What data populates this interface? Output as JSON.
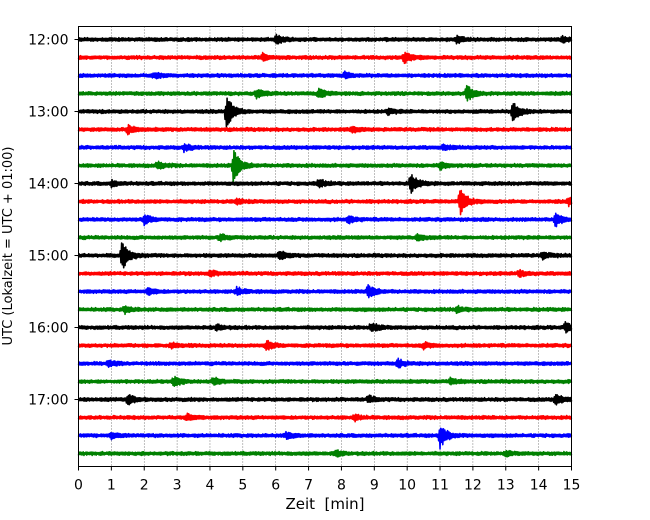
{
  "chart_data": {
    "type": "line",
    "title": "",
    "xlabel": "Zeit  [min]",
    "ylabel": "UTC (Lokalzeit = UTC + 01:00)",
    "xlim": [
      0,
      15
    ],
    "x_ticks": [
      "0",
      "1",
      "2",
      "3",
      "4",
      "5",
      "6",
      "7",
      "8",
      "9",
      "10",
      "11",
      "12",
      "13",
      "14",
      "15"
    ],
    "y_tick_labels": [
      "12:00",
      "13:00",
      "14:00",
      "15:00",
      "16:00",
      "17:00"
    ],
    "grid": "vertical dotted lines at each minute",
    "trace_interval_minutes": 15,
    "colors_cycle": [
      "#000000",
      "#ff0000",
      "#0000ff",
      "#008000"
    ],
    "traces": [
      {
        "start": "12:00",
        "color": "#000000",
        "events": [
          [
            6.0,
            0.6
          ],
          [
            11.5,
            0.5
          ],
          [
            14.7,
            0.4
          ]
        ]
      },
      {
        "start": "12:15",
        "color": "#ff0000",
        "events": [
          [
            5.6,
            0.5
          ],
          [
            9.9,
            0.8
          ]
        ]
      },
      {
        "start": "12:30",
        "color": "#0000ff",
        "events": [
          [
            2.3,
            0.4
          ],
          [
            8.1,
            0.4
          ]
        ]
      },
      {
        "start": "12:45",
        "color": "#008000",
        "events": [
          [
            5.4,
            0.6
          ],
          [
            7.3,
            0.7
          ],
          [
            11.8,
            1.3
          ]
        ]
      },
      {
        "start": "13:00",
        "color": "#000000",
        "events": [
          [
            4.5,
            2.3
          ],
          [
            13.2,
            1.5
          ],
          [
            9.4,
            0.4
          ]
        ]
      },
      {
        "start": "13:15",
        "color": "#ff0000",
        "events": [
          [
            1.5,
            0.6
          ],
          [
            8.3,
            0.4
          ]
        ]
      },
      {
        "start": "13:30",
        "color": "#0000ff",
        "events": [
          [
            3.2,
            0.5
          ],
          [
            11.1,
            0.4
          ]
        ]
      },
      {
        "start": "13:45",
        "color": "#008000",
        "events": [
          [
            4.7,
            2.5
          ],
          [
            2.4,
            0.5
          ],
          [
            11.0,
            0.5
          ]
        ]
      },
      {
        "start": "14:00",
        "color": "#000000",
        "events": [
          [
            10.1,
            1.4
          ],
          [
            7.3,
            0.6
          ],
          [
            1.0,
            0.4
          ]
        ]
      },
      {
        "start": "14:15",
        "color": "#ff0000",
        "events": [
          [
            11.6,
            2.2
          ],
          [
            14.9,
            0.6
          ],
          [
            4.8,
            0.4
          ]
        ]
      },
      {
        "start": "14:30",
        "color": "#0000ff",
        "events": [
          [
            14.5,
            1.0
          ],
          [
            2.0,
            0.7
          ],
          [
            8.2,
            0.5
          ]
        ]
      },
      {
        "start": "14:45",
        "color": "#008000",
        "events": [
          [
            4.3,
            0.5
          ],
          [
            10.3,
            0.4
          ]
        ]
      },
      {
        "start": "15:00",
        "color": "#000000",
        "events": [
          [
            1.3,
            2.4
          ],
          [
            6.1,
            0.6
          ],
          [
            14.1,
            0.5
          ]
        ]
      },
      {
        "start": "15:15",
        "color": "#ff0000",
        "events": [
          [
            4.0,
            0.4
          ],
          [
            13.4,
            0.5
          ]
        ]
      },
      {
        "start": "15:30",
        "color": "#0000ff",
        "events": [
          [
            8.8,
            1.1
          ],
          [
            4.8,
            0.6
          ],
          [
            2.1,
            0.5
          ]
        ]
      },
      {
        "start": "15:45",
        "color": "#008000",
        "events": [
          [
            1.4,
            0.5
          ],
          [
            11.5,
            0.4
          ]
        ]
      },
      {
        "start": "16:00",
        "color": "#000000",
        "events": [
          [
            8.9,
            0.7
          ],
          [
            14.8,
            0.7
          ],
          [
            4.2,
            0.4
          ]
        ]
      },
      {
        "start": "16:15",
        "color": "#ff0000",
        "events": [
          [
            5.7,
            0.7
          ],
          [
            2.8,
            0.4
          ],
          [
            10.5,
            0.4
          ]
        ]
      },
      {
        "start": "16:30",
        "color": "#0000ff",
        "events": [
          [
            9.7,
            0.6
          ],
          [
            0.9,
            0.4
          ]
        ]
      },
      {
        "start": "16:45",
        "color": "#008000",
        "events": [
          [
            2.9,
            0.9
          ],
          [
            4.1,
            0.6
          ],
          [
            11.3,
            0.4
          ]
        ]
      },
      {
        "start": "17:00",
        "color": "#000000",
        "events": [
          [
            14.5,
            0.8
          ],
          [
            1.5,
            0.7
          ],
          [
            8.8,
            0.5
          ]
        ]
      },
      {
        "start": "17:15",
        "color": "#ff0000",
        "events": [
          [
            8.4,
            0.4
          ],
          [
            3.3,
            0.4
          ]
        ]
      },
      {
        "start": "17:30",
        "color": "#0000ff",
        "events": [
          [
            11.0,
            1.8
          ],
          [
            6.3,
            0.5
          ],
          [
            1.0,
            0.4
          ]
        ]
      },
      {
        "start": "17:45",
        "color": "#008000",
        "events": [
          [
            7.8,
            0.4
          ],
          [
            13.0,
            0.3
          ]
        ]
      }
    ]
  }
}
